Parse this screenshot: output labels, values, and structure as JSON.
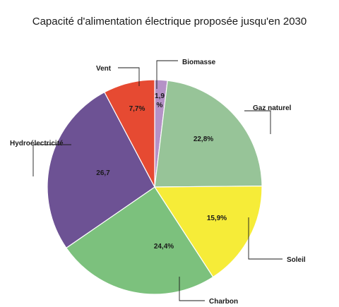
{
  "chart_data": {
    "type": "pie",
    "title": "Capacité d'alimentation électrique proposée jusqu'en 2030",
    "slices": [
      {
        "name": "Biomasse",
        "value": 1.9,
        "label": "1,9 %",
        "color": "#b592c7"
      },
      {
        "name": "Gaz naturel",
        "value": 22.8,
        "label": "22,8%",
        "color": "#97c498"
      },
      {
        "name": "Soleil",
        "value": 15.9,
        "label": "15,9%",
        "color": "#f6ec38"
      },
      {
        "name": "Charbon",
        "value": 24.4,
        "label": "24,4%",
        "color": "#7cc17d"
      },
      {
        "name": "Hydroélectricité",
        "value": 26.7,
        "label": "26,7",
        "color": "#6d5294"
      },
      {
        "name": "Vent",
        "value": 7.7,
        "label": "7,7%",
        "color": "#e64a32"
      }
    ],
    "legend_placement": "callout labels with leader lines"
  }
}
